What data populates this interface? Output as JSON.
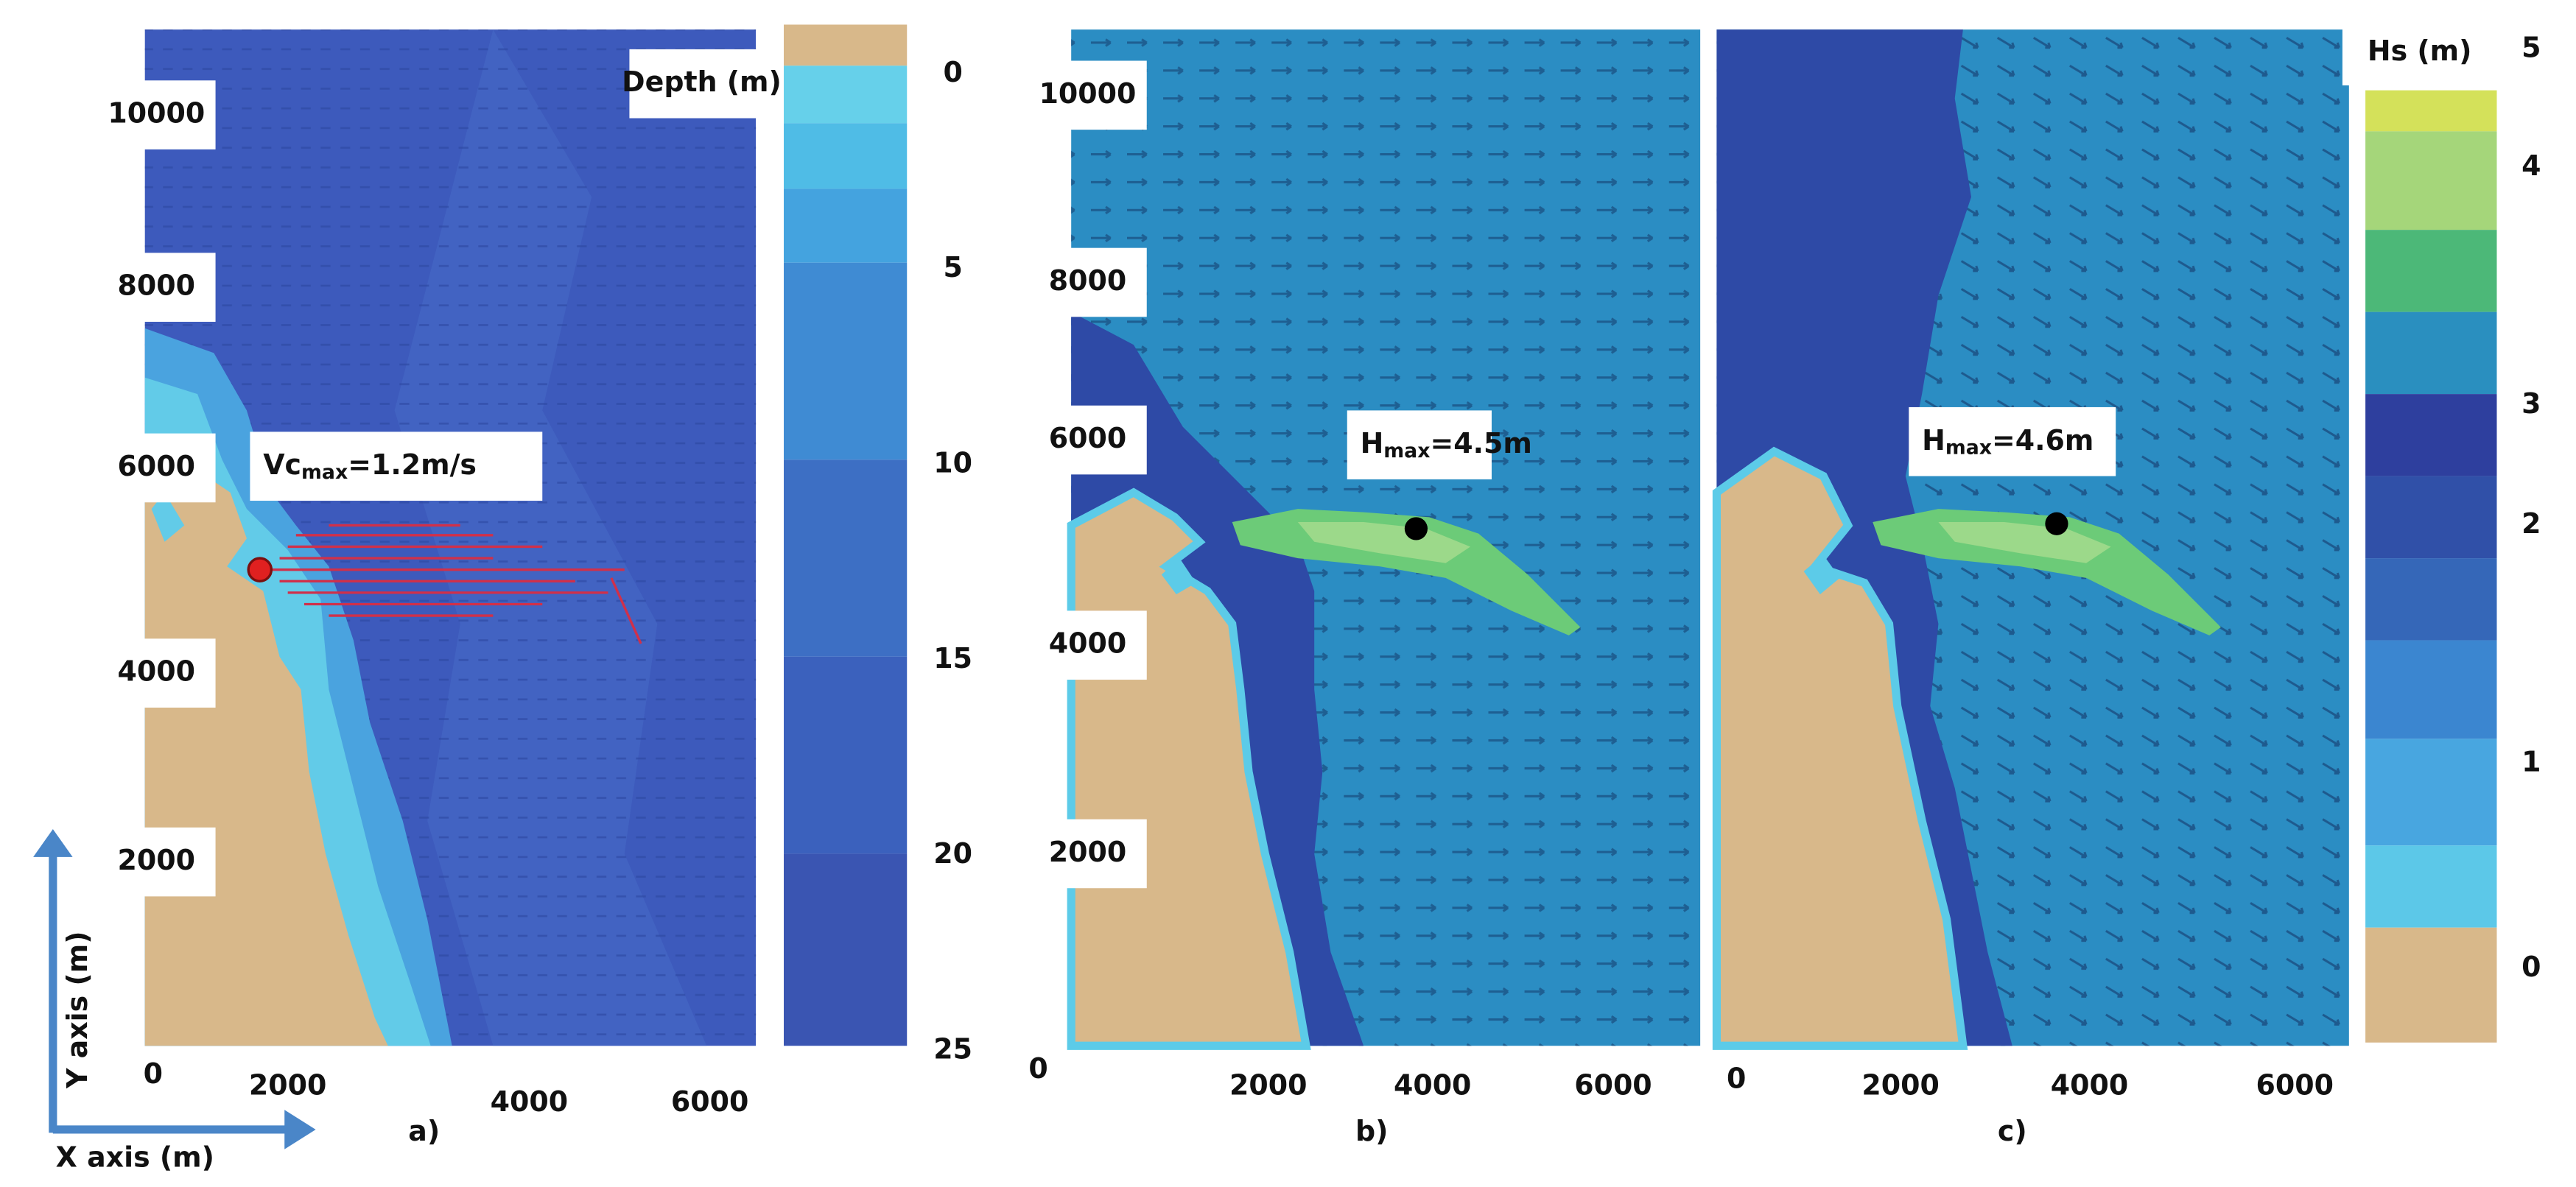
{
  "panels": [
    {
      "label": "a)",
      "y_ticks": [
        10000,
        8000,
        6000,
        4000,
        2000
      ],
      "x_ticks": [
        0,
        2000,
        4000,
        6000
      ],
      "annotation": {
        "text": "Vc",
        "subscript": "max",
        "suffix": "=1.2m/s"
      }
    },
    {
      "label": "b)",
      "y_ticks": [
        10000,
        8000,
        6000,
        4000,
        2000
      ],
      "x_ticks": [
        0,
        2000,
        4000,
        6000
      ],
      "annotation": {
        "text": "H",
        "subscript": "max",
        "suffix": "=4.5m"
      }
    },
    {
      "label": "c)",
      "x_ticks": [
        0,
        2000,
        4000,
        6000
      ],
      "annotation": {
        "text": "H",
        "subscript": "max",
        "suffix": "=4.6m"
      }
    }
  ],
  "colorbars": [
    {
      "title": "Depth (m)",
      "ticks": [
        0,
        5,
        10,
        15,
        20,
        25
      ]
    },
    {
      "title": "Hs (m)",
      "ticks": [
        5,
        4,
        3,
        2,
        1,
        0
      ]
    }
  ],
  "axis_labels": {
    "y": "Y axis (m)",
    "x": "X axis (m)"
  }
}
